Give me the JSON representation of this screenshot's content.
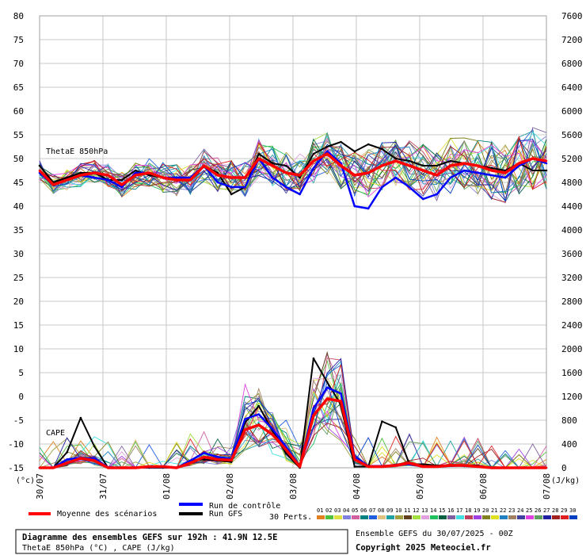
{
  "chart_data": {
    "type": "line",
    "left_axis": {
      "unit": "(°c)",
      "ylim": [
        -15,
        80
      ],
      "ticks": [
        -15,
        -10,
        -5,
        0,
        5,
        10,
        15,
        20,
        25,
        30,
        35,
        40,
        45,
        50,
        55,
        60,
        65,
        70,
        75,
        80
      ]
    },
    "right_axis": {
      "unit": "(J/kg)",
      "ylim": [
        0,
        7600
      ],
      "ticks": [
        0,
        400,
        800,
        1200,
        1600,
        2000,
        2400,
        2800,
        3200,
        3600,
        4000,
        4400,
        4800,
        5200,
        5600,
        6000,
        6400,
        6800,
        7200,
        7600
      ]
    },
    "x_ticks": [
      "30/07",
      "31/07",
      "01/08",
      "02/08",
      "03/08",
      "04/08",
      "05/08",
      "06/08",
      "07/08"
    ],
    "theta_label": "ThetaE 850hPa",
    "cape_label": "CAPE",
    "series": [
      {
        "name": "ThetaE mean",
        "role": "theta_mean",
        "color": "#ff0000",
        "values": [
          47.5,
          44.5,
          45.5,
          46.5,
          47,
          46.5,
          44.5,
          46.5,
          47,
          46,
          45.5,
          45.5,
          48.5,
          46.5,
          46,
          46,
          50,
          48.5,
          47,
          46.5,
          49.5,
          51,
          48.5,
          46.5,
          47,
          48.5,
          49.5,
          48.5,
          47.5,
          46.5,
          48.5,
          49,
          48.5,
          47.5,
          47,
          49,
          50,
          49.5
        ]
      },
      {
        "name": "ThetaE control",
        "role": "theta_control",
        "color": "#0000ff",
        "values": [
          47,
          44.5,
          45.5,
          46.5,
          46,
          45.5,
          44,
          47,
          47,
          46,
          46,
          46,
          48.5,
          45,
          44,
          44,
          50,
          46,
          44,
          42.5,
          48,
          51.5,
          49,
          40,
          39.5,
          44,
          46,
          44,
          41.5,
          42.5,
          46,
          47.5,
          47,
          46.5,
          46,
          48.5,
          50,
          49
        ]
      },
      {
        "name": "ThetaE GFS",
        "role": "theta_gfs",
        "color": "#000000",
        "values": [
          48.5,
          45,
          46,
          47,
          47,
          45.5,
          45.5,
          47.5,
          46.5,
          46,
          45.5,
          45.5,
          48.5,
          47,
          42.5,
          44,
          51,
          49,
          48.5,
          46,
          51,
          52.5,
          53.5,
          51.5,
          53,
          52,
          50,
          49.5,
          48.5,
          48.5,
          49.5,
          49,
          48.5,
          48,
          47.5,
          49,
          47.5,
          47.5
        ]
      },
      {
        "name": "CAPE mean",
        "role": "cape_mean",
        "color": "#ff0000",
        "values": [
          0,
          0,
          80,
          160,
          120,
          0,
          0,
          0,
          20,
          20,
          0,
          80,
          180,
          140,
          130,
          640,
          720,
          560,
          300,
          20,
          880,
          1160,
          1120,
          140,
          20,
          20,
          40,
          80,
          20,
          20,
          40,
          40,
          20,
          0,
          0,
          0,
          0,
          0
        ]
      },
      {
        "name": "CAPE control",
        "role": "cape_control",
        "color": "#0000ff",
        "values": [
          0,
          0,
          140,
          170,
          150,
          10,
          0,
          0,
          10,
          10,
          0,
          120,
          250,
          180,
          150,
          820,
          900,
          650,
          350,
          30,
          1000,
          1350,
          1250,
          180,
          30,
          30,
          40,
          60,
          20,
          20,
          40,
          40,
          20,
          0,
          0,
          0,
          0,
          0
        ]
      },
      {
        "name": "CAPE GFS",
        "role": "cape_gfs",
        "color": "#000000",
        "values": [
          0,
          0,
          260,
          840,
          360,
          0,
          0,
          0,
          0,
          0,
          0,
          120,
          140,
          120,
          100,
          760,
          1040,
          620,
          240,
          0,
          1840,
          1440,
          1060,
          20,
          20,
          780,
          680,
          60,
          60,
          40,
          40,
          40,
          40,
          0,
          0,
          0,
          0,
          0
        ]
      }
    ],
    "perturbation_codes": [
      "01",
      "02",
      "03",
      "04",
      "05",
      "06",
      "07",
      "08",
      "09",
      "10",
      "11",
      "12",
      "13",
      "14",
      "15",
      "16",
      "17",
      "18",
      "19",
      "20",
      "21",
      "22",
      "23",
      "24",
      "25",
      "26",
      "27",
      "28",
      "29",
      "30"
    ],
    "perturbation_colors": [
      "#e08020",
      "#50c040",
      "#e0e040",
      "#8080e0",
      "#d060a0",
      "#008080",
      "#2060e0",
      "#e0c080",
      "#20a0a0",
      "#a0a040",
      "#604020",
      "#a0e040",
      "#e0a0e0",
      "#20c060",
      "#006040",
      "#8060a0",
      "#40e0e0",
      "#c04060",
      "#a040e0",
      "#808020",
      "#e0e020",
      "#2080c0",
      "#a08060",
      "#4040a0",
      "#e040e0",
      "#60a060",
      "#2020a0",
      "#a02020",
      "#e02020",
      "#0040c0"
    ]
  },
  "legend": {
    "mean": "Moyenne des scénarios",
    "control": "Run de contrôle",
    "gfs": "Run GFS",
    "perts": "30 Perts."
  },
  "footer": {
    "title": "Diagramme des ensembles GEFS sur 192h : 41.9N 12.5E",
    "subtitle": "ThetaE 850hPa (°C) , CAPE (J/kg)",
    "run": "Ensemble GEFS du 30/07/2025 - 00Z",
    "copyright": "Copyright 2025 Meteociel.fr"
  }
}
